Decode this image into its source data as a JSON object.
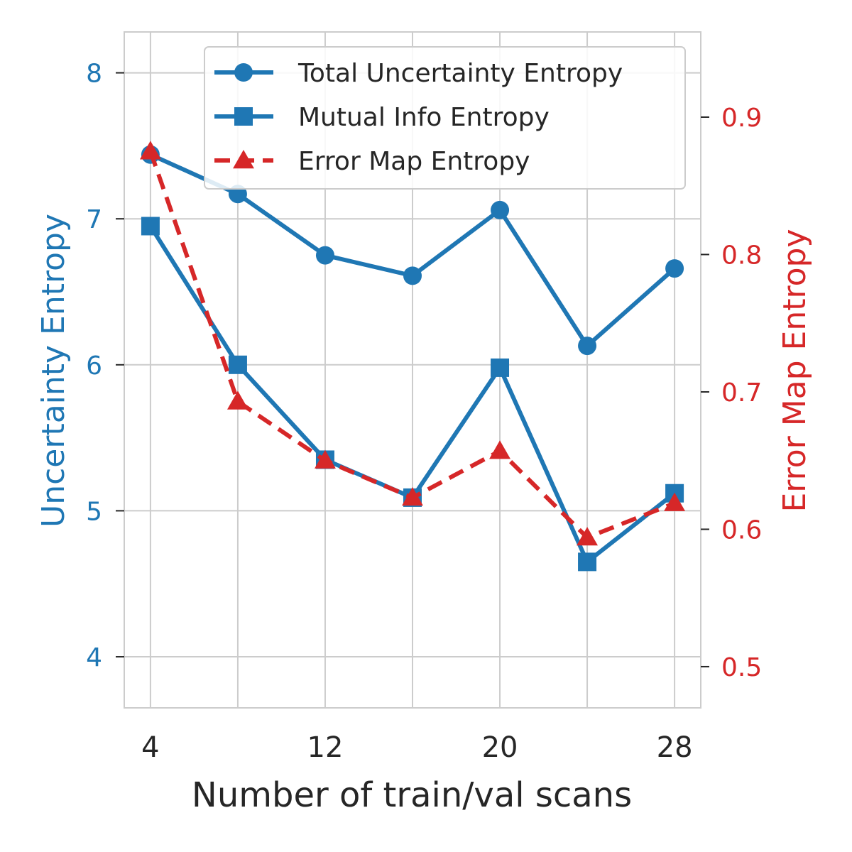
{
  "chart_data": {
    "type": "line",
    "title": "",
    "xlabel": "Number of train/val scans",
    "ylabel_left": "Uncertainty Entropy",
    "ylabel_right": "Error Map Entropy",
    "x": [
      4,
      8,
      12,
      16,
      20,
      24,
      28
    ],
    "xlim": [
      2.8,
      29.2
    ],
    "xticks": [
      4,
      12,
      20,
      28
    ],
    "ylim_left": [
      3.65,
      8.28
    ],
    "yticks_left": [
      4,
      5,
      6,
      7,
      8
    ],
    "ylim_right": [
      0.47,
      0.962
    ],
    "yticks_right": [
      0.5,
      0.6,
      0.7,
      0.8,
      0.9
    ],
    "grid": true,
    "legend_position": "top-right",
    "colors": {
      "left_axis": "#1f77b4",
      "right_axis": "#d62728",
      "grid": "#cccccc",
      "spine": "#cccccc",
      "text": "#262626"
    },
    "series": [
      {
        "name": "Total Uncertainty Entropy",
        "axis": "left",
        "marker": "circle",
        "linestyle": "solid",
        "color": "#1f77b4",
        "values": [
          7.44,
          7.17,
          6.75,
          6.61,
          7.06,
          6.13,
          6.66
        ]
      },
      {
        "name": "Mutual Info Entropy",
        "axis": "left",
        "marker": "square",
        "linestyle": "solid",
        "color": "#1f77b4",
        "values": [
          6.95,
          6.0,
          5.35,
          5.09,
          5.98,
          4.65,
          5.12
        ]
      },
      {
        "name": "Error Map Entropy",
        "axis": "right",
        "marker": "triangle",
        "linestyle": "dashed",
        "color": "#d62728",
        "values": [
          0.875,
          0.693,
          0.65,
          0.623,
          0.657,
          0.594,
          0.619
        ]
      }
    ]
  }
}
